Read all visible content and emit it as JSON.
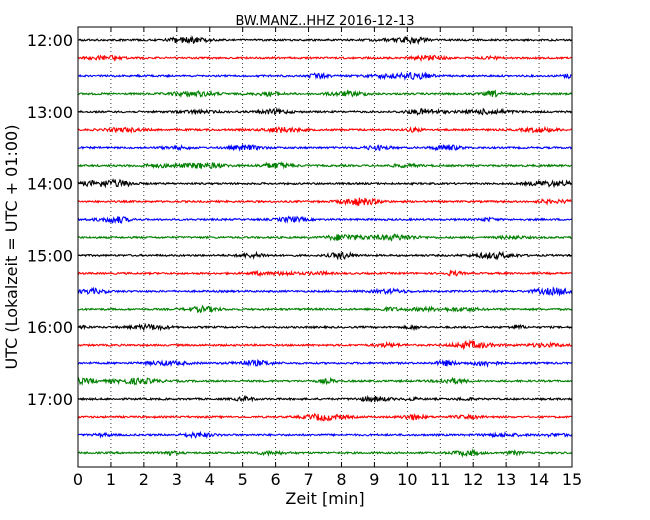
{
  "chart_data": {
    "type": "line",
    "title": "BW.MANZ..HHZ 2016-12-13",
    "xlabel": "Zeit  [min]",
    "ylabel": "UTC (Lokalzeit = UTC + 01:00)",
    "xlim": [
      0,
      15
    ],
    "x_ticks": [
      "0",
      "1",
      "2",
      "3",
      "4",
      "5",
      "6",
      "7",
      "8",
      "9",
      "10",
      "11",
      "12",
      "13",
      "14",
      "15"
    ],
    "y_ticks": [
      "12:00",
      "13:00",
      "14:00",
      "15:00",
      "16:00",
      "17:00"
    ],
    "grid": "vertical dotted at each minute",
    "trace_colors": [
      "#000000",
      "#ff0000",
      "#0000ff",
      "#008000"
    ],
    "traces": [
      {
        "start": "12:00"
      },
      {
        "start": "12:15"
      },
      {
        "start": "12:30"
      },
      {
        "start": "12:45"
      },
      {
        "start": "13:00"
      },
      {
        "start": "13:15"
      },
      {
        "start": "13:30"
      },
      {
        "start": "13:45"
      },
      {
        "start": "14:00"
      },
      {
        "start": "14:15"
      },
      {
        "start": "14:30"
      },
      {
        "start": "14:45"
      },
      {
        "start": "15:00"
      },
      {
        "start": "15:15"
      },
      {
        "start": "15:30"
      },
      {
        "start": "15:45"
      },
      {
        "start": "16:00"
      },
      {
        "start": "16:15"
      },
      {
        "start": "16:30"
      },
      {
        "start": "16:45"
      },
      {
        "start": "17:00"
      },
      {
        "start": "17:15"
      },
      {
        "start": "17:30"
      },
      {
        "start": "17:45"
      }
    ]
  }
}
